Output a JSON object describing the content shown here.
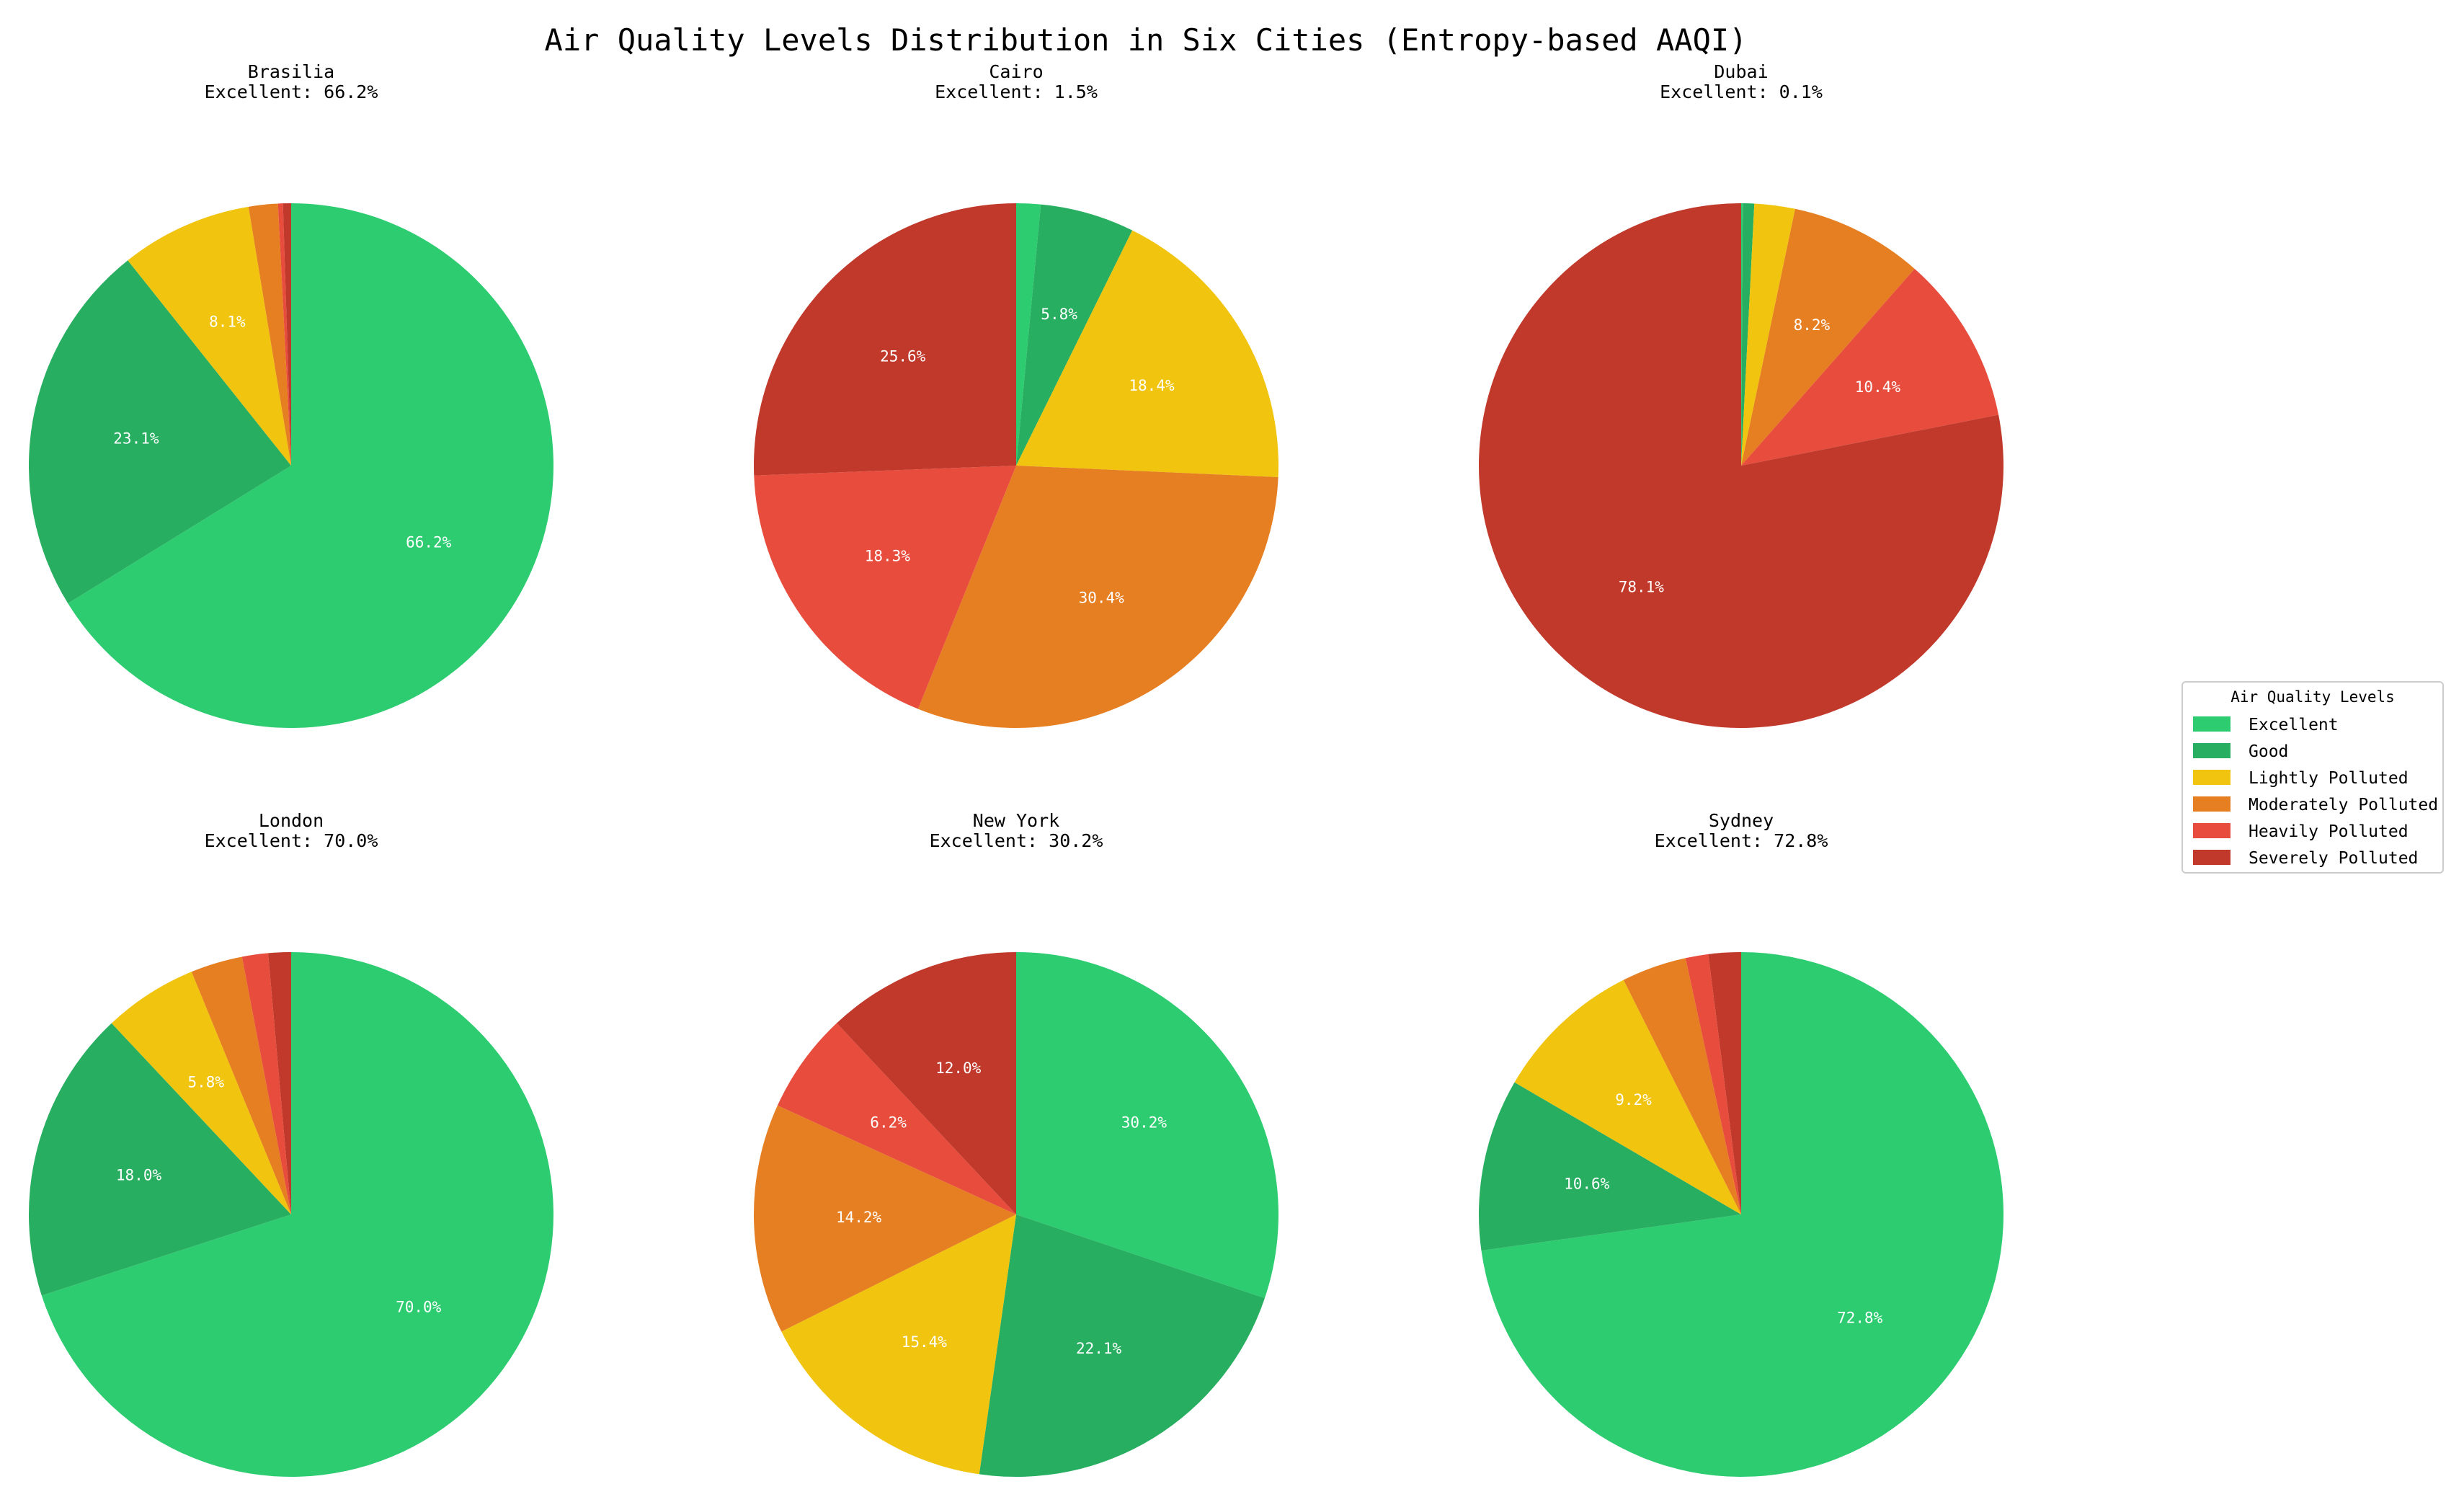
{
  "chart_data": {
    "type": "pie",
    "title": "Air Quality Levels Distribution in Six Cities (Entropy-based AAQI)",
    "legend": {
      "title": "Air Quality Levels",
      "placement": "center-right",
      "entries": [
        "Excellent",
        "Good",
        "Lightly Polluted",
        "Moderately Polluted",
        "Heavily Polluted",
        "Severely Polluted"
      ]
    },
    "colors": [
      "#2ecc71",
      "#27ae60",
      "#f1c40f",
      "#e67e22",
      "#e74c3c",
      "#c0392b"
    ],
    "pies": [
      {
        "city": "Brasilia",
        "subtitle": "Excellent: 66.2%",
        "values": [
          66.2,
          23.1,
          8.1,
          1.8,
          0.3,
          0.5
        ],
        "labels": [
          "66.2%",
          "23.1%",
          "8.1%",
          "",
          "",
          ""
        ]
      },
      {
        "city": "Cairo",
        "subtitle": "Excellent: 1.5%",
        "values": [
          1.5,
          5.8,
          18.4,
          30.4,
          18.3,
          25.6
        ],
        "labels": [
          "",
          "5.8%",
          "18.4%",
          "30.4%",
          "18.3%",
          "25.6%"
        ]
      },
      {
        "city": "Dubai",
        "subtitle": "Excellent: 0.1%",
        "values": [
          0.1,
          0.7,
          2.5,
          8.2,
          10.4,
          78.1
        ],
        "labels": [
          "",
          "",
          "",
          "8.2%",
          "10.4%",
          "78.1%"
        ]
      },
      {
        "city": "London",
        "subtitle": "Excellent: 70.0%",
        "values": [
          70.0,
          18.0,
          5.8,
          3.2,
          1.6,
          1.4
        ],
        "labels": [
          "70.0%",
          "18.0%",
          "5.8%",
          "",
          "",
          ""
        ]
      },
      {
        "city": "New York",
        "subtitle": "Excellent: 30.2%",
        "values": [
          30.2,
          22.1,
          15.4,
          14.2,
          6.2,
          12.0
        ],
        "labels": [
          "30.2%",
          "22.1%",
          "15.4%",
          "14.2%",
          "6.2%",
          "12.0%"
        ]
      },
      {
        "city": "Sydney",
        "subtitle": "Excellent: 72.8%",
        "values": [
          72.8,
          10.6,
          9.2,
          4.0,
          1.4,
          2.0
        ],
        "labels": [
          "72.8%",
          "10.6%",
          "9.2%",
          "",
          "",
          ""
        ]
      }
    ]
  }
}
